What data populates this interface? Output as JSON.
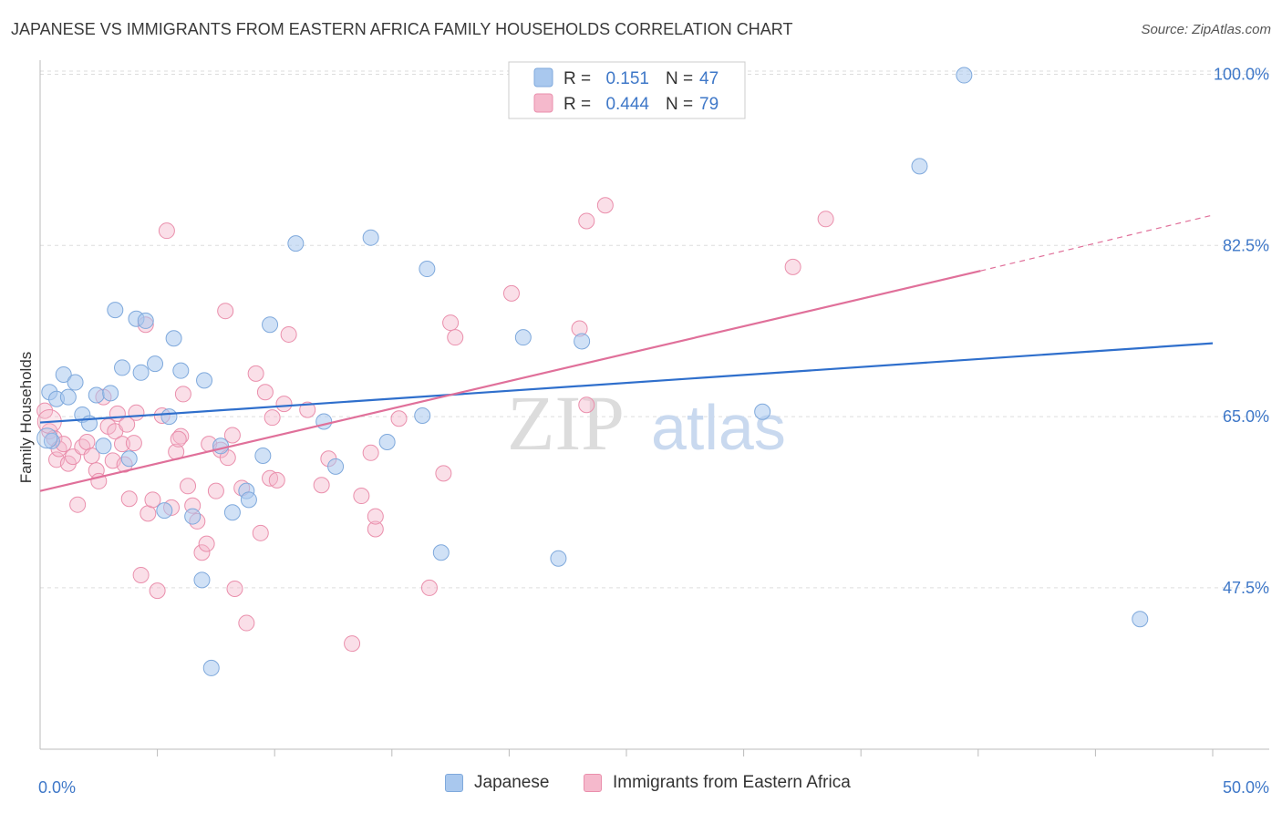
{
  "title": "JAPANESE VS IMMIGRANTS FROM EASTERN AFRICA FAMILY HOUSEHOLDS CORRELATION CHART",
  "source": "Source: ZipAtlas.com",
  "colors": {
    "blue_fill": "#a9c8ee",
    "blue_stroke": "#7fa9dc",
    "blue_line": "#2f6fcc",
    "pink_fill": "#f5b9cc",
    "pink_stroke": "#ea8fac",
    "pink_line": "#e0709a",
    "axis_label": "#3f78c8",
    "grid": "#dddddd"
  },
  "stats_legend": {
    "rows": [
      {
        "r_label": "R =",
        "r_value": "0.151",
        "n_label": "N =",
        "n_value": "47"
      },
      {
        "r_label": "R =",
        "r_value": "0.444",
        "n_label": "N =",
        "n_value": "79"
      }
    ]
  },
  "legend": {
    "items": [
      "Japanese",
      "Immigrants from Eastern Africa"
    ]
  },
  "chart_data": {
    "type": "scatter",
    "ylabel": "Family Households",
    "xlim": [
      0,
      50
    ],
    "ylim": [
      31,
      102
    ],
    "x_tick_labels": [
      "0.0%",
      "50.0%"
    ],
    "y_ticks": [
      47.5,
      65.0,
      82.5,
      100.0
    ],
    "y_tick_labels": [
      "47.5%",
      "65.0%",
      "82.5%",
      "100.0%"
    ],
    "grid": true,
    "legend_position": "top-center",
    "series": [
      {
        "name": "Japanese",
        "trend": {
          "x0": 0,
          "y0": 64.4,
          "x1": 50,
          "y1": 72.5
        },
        "points": [
          [
            0.4,
            67.5
          ],
          [
            0.5,
            62.5
          ],
          [
            0.7,
            66.8
          ],
          [
            1.0,
            69.3
          ],
          [
            1.2,
            67.0
          ],
          [
            1.5,
            68.5
          ],
          [
            1.8,
            65.2
          ],
          [
            2.1,
            64.3
          ],
          [
            2.4,
            67.2
          ],
          [
            2.7,
            62.0
          ],
          [
            3.0,
            67.4
          ],
          [
            3.2,
            75.9
          ],
          [
            3.5,
            70.0
          ],
          [
            3.8,
            60.7
          ],
          [
            4.1,
            75.0
          ],
          [
            4.3,
            69.5
          ],
          [
            4.5,
            74.8
          ],
          [
            4.9,
            70.4
          ],
          [
            5.3,
            55.4
          ],
          [
            5.5,
            65.0
          ],
          [
            5.7,
            73.0
          ],
          [
            6.0,
            69.7
          ],
          [
            6.5,
            54.8
          ],
          [
            6.9,
            48.3
          ],
          [
            7.0,
            68.7
          ],
          [
            7.3,
            39.3
          ],
          [
            7.7,
            62.0
          ],
          [
            8.2,
            55.2
          ],
          [
            8.8,
            57.4
          ],
          [
            8.9,
            56.5
          ],
          [
            9.5,
            61.0
          ],
          [
            9.8,
            74.4
          ],
          [
            10.9,
            82.7
          ],
          [
            12.1,
            64.5
          ],
          [
            12.6,
            59.9
          ],
          [
            14.1,
            83.3
          ],
          [
            14.8,
            62.4
          ],
          [
            16.3,
            65.1
          ],
          [
            16.5,
            80.1
          ],
          [
            17.1,
            51.1
          ],
          [
            20.6,
            73.1
          ],
          [
            22.1,
            50.5
          ],
          [
            23.1,
            72.7
          ],
          [
            30.8,
            65.5
          ],
          [
            37.5,
            90.6
          ],
          [
            39.4,
            99.9
          ],
          [
            46.9,
            44.3
          ]
        ]
      },
      {
        "name": "Immigrants from Eastern Africa",
        "trend": {
          "x0": 0,
          "y0": 57.4,
          "x1": 40.1,
          "y1": 79.9
        },
        "trend_dashed": {
          "x0": 40.1,
          "y0": 79.9,
          "x1": 50,
          "y1": 85.6
        },
        "points": [
          [
            0.2,
            65.6
          ],
          [
            0.4,
            63.5
          ],
          [
            0.6,
            62.8
          ],
          [
            0.7,
            60.6
          ],
          [
            0.8,
            61.7
          ],
          [
            1.0,
            62.2
          ],
          [
            1.2,
            60.2
          ],
          [
            1.4,
            60.9
          ],
          [
            1.6,
            56.0
          ],
          [
            1.8,
            61.9
          ],
          [
            2.0,
            62.4
          ],
          [
            2.2,
            61.0
          ],
          [
            2.4,
            59.5
          ],
          [
            2.5,
            58.4
          ],
          [
            2.7,
            67.0
          ],
          [
            2.9,
            64.0
          ],
          [
            3.1,
            60.5
          ],
          [
            3.2,
            63.5
          ],
          [
            3.3,
            65.3
          ],
          [
            3.5,
            62.2
          ],
          [
            3.6,
            60.1
          ],
          [
            3.7,
            64.2
          ],
          [
            3.8,
            56.6
          ],
          [
            4.0,
            62.3
          ],
          [
            4.1,
            65.4
          ],
          [
            4.3,
            48.8
          ],
          [
            4.5,
            74.4
          ],
          [
            4.6,
            55.1
          ],
          [
            4.8,
            56.5
          ],
          [
            5.0,
            47.2
          ],
          [
            5.2,
            65.1
          ],
          [
            5.4,
            84.0
          ],
          [
            5.6,
            55.7
          ],
          [
            5.8,
            61.4
          ],
          [
            6.0,
            63.0
          ],
          [
            6.1,
            67.3
          ],
          [
            6.3,
            57.9
          ],
          [
            6.5,
            55.9
          ],
          [
            6.7,
            54.3
          ],
          [
            6.9,
            51.1
          ],
          [
            7.1,
            52.0
          ],
          [
            7.2,
            62.2
          ],
          [
            7.5,
            57.4
          ],
          [
            7.7,
            61.6
          ],
          [
            7.9,
            75.8
          ],
          [
            8.2,
            63.1
          ],
          [
            8.3,
            47.4
          ],
          [
            8.6,
            57.7
          ],
          [
            8.8,
            43.9
          ],
          [
            9.2,
            69.4
          ],
          [
            9.4,
            53.1
          ],
          [
            9.6,
            67.5
          ],
          [
            9.8,
            58.7
          ],
          [
            10.1,
            58.5
          ],
          [
            10.4,
            66.3
          ],
          [
            10.6,
            73.4
          ],
          [
            11.4,
            65.7
          ],
          [
            12.0,
            58.0
          ],
          [
            12.3,
            60.7
          ],
          [
            13.3,
            41.8
          ],
          [
            13.7,
            56.9
          ],
          [
            14.1,
            61.3
          ],
          [
            14.3,
            53.5
          ],
          [
            14.3,
            54.8
          ],
          [
            15.3,
            64.8
          ],
          [
            16.6,
            47.5
          ],
          [
            17.2,
            59.2
          ],
          [
            17.5,
            74.6
          ],
          [
            17.7,
            73.1
          ],
          [
            20.1,
            77.6
          ],
          [
            23.0,
            74.0
          ],
          [
            23.3,
            85.0
          ],
          [
            24.1,
            86.6
          ],
          [
            23.3,
            66.2
          ],
          [
            32.1,
            80.3
          ],
          [
            33.5,
            85.2
          ],
          [
            8.0,
            60.8
          ],
          [
            5.9,
            62.7
          ],
          [
            9.9,
            64.9
          ]
        ]
      }
    ]
  }
}
